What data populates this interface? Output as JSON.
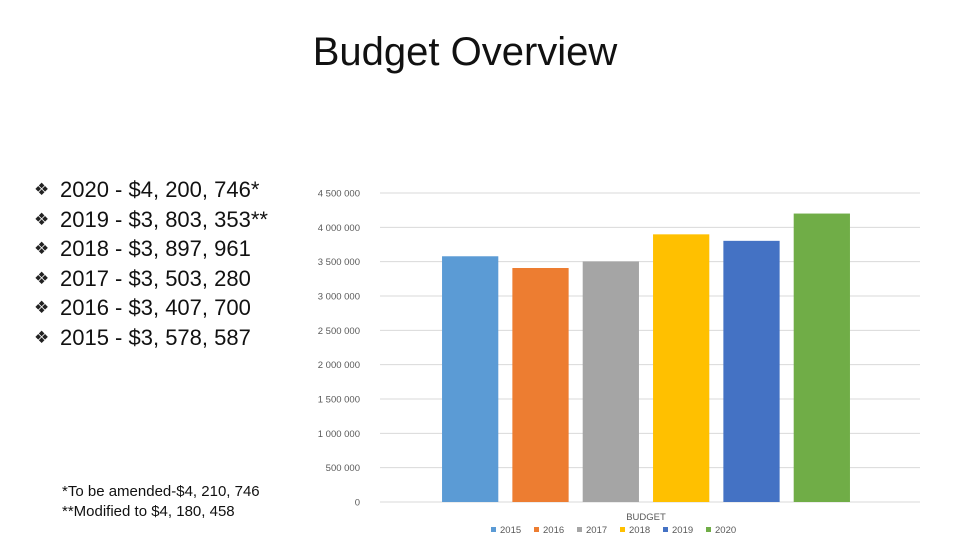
{
  "page": {
    "title": "Budget Overview"
  },
  "bullets": [
    {
      "icon": "diamond-bullet-icon",
      "text": "2020 - $4, 200, 746*"
    },
    {
      "icon": "diamond-bullet-icon",
      "text": "2019 - $3, 803, 353**"
    },
    {
      "icon": "diamond-bullet-icon",
      "text": "2018 - $3, 897, 961"
    },
    {
      "icon": "diamond-bullet-icon",
      "text": "2017 - $3, 503, 280"
    },
    {
      "icon": "diamond-bullet-icon",
      "text": "2016 - $3, 407, 700"
    },
    {
      "icon": "diamond-bullet-icon",
      "text": "2015 - $3, 578, 587"
    }
  ],
  "notes": {
    "amended": "*To be amended-$4, 210, 746",
    "modified": "**Modified to $4, 180, 458"
  },
  "chart_data": {
    "type": "bar",
    "title": "",
    "xlabel": "BUDGET",
    "ylabel": "",
    "ylim": [
      0,
      4500000
    ],
    "yticks": [
      0,
      500000,
      1000000,
      1500000,
      2000000,
      2500000,
      3000000,
      3500000,
      4000000,
      4500000
    ],
    "ytick_labels": [
      "0",
      "500 000",
      "1 000 000",
      "1 500 000",
      "2 000 000",
      "2 500 000",
      "3 000 000",
      "3 500 000",
      "4 000 000",
      "4 500 000"
    ],
    "grid": true,
    "legend_position": "bottom",
    "categories": [
      "BUDGET"
    ],
    "series": [
      {
        "name": "2015",
        "values": [
          3578587
        ],
        "color": "#5B9BD5"
      },
      {
        "name": "2016",
        "values": [
          3407700
        ],
        "color": "#ED7D31"
      },
      {
        "name": "2017",
        "values": [
          3503280
        ],
        "color": "#A5A5A5"
      },
      {
        "name": "2018",
        "values": [
          3897961
        ],
        "color": "#FFC000"
      },
      {
        "name": "2019",
        "values": [
          3803353
        ],
        "color": "#4472C4"
      },
      {
        "name": "2020",
        "values": [
          4200746
        ],
        "color": "#70AD47"
      }
    ]
  }
}
